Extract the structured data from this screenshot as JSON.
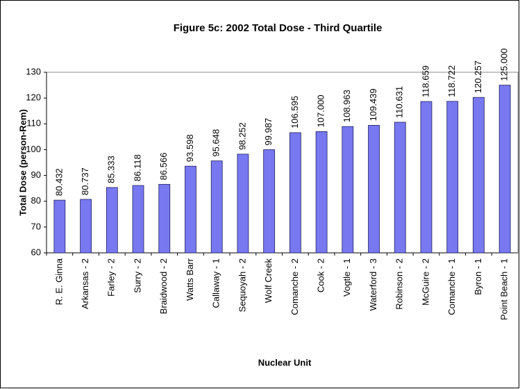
{
  "chart_data": {
    "type": "bar",
    "title": "Figure 5c: 2002 Total Dose - Third Quartile",
    "x_label": "Nuclear Unit",
    "y_label": "Total Dose (person-Rem)",
    "categories": [
      "R. E. Ginna",
      "Arkansas - 2",
      "Farley - 2",
      "Surry - 2",
      "Braidwood - 2",
      "Watts Barr",
      "Callaway - 1",
      "Sequoyah - 2",
      "Wolf Creek",
      "Comanche - 2",
      "Cook - 2",
      "Vogtle - 1",
      "Waterford - 3",
      "Robinson - 2",
      "McGuire - 2",
      "Comanche - 1",
      "Byron - 1",
      "Point Beach - 1"
    ],
    "values": [
      80.432,
      80.737,
      85.333,
      86.118,
      86.566,
      93.598,
      95.648,
      98.252,
      99.987,
      106.595,
      107,
      108.963,
      109.439,
      110.631,
      118.659,
      118.722,
      120.257,
      125
    ],
    "value_labels": [
      "80.432",
      "80.737",
      "85.333",
      "86.118",
      "86.566",
      "93.598",
      "95.648",
      "98.252",
      "99.987",
      "106.595",
      "107.000",
      "108.963",
      "109.439",
      "110.631",
      "118.659",
      "118.722",
      "120.257",
      "125.000"
    ],
    "color": "#7878f0",
    "ylim": [
      60,
      130
    ],
    "yticks": [
      60,
      70,
      80,
      90,
      100,
      110,
      120,
      130
    ],
    "grid": false
  }
}
